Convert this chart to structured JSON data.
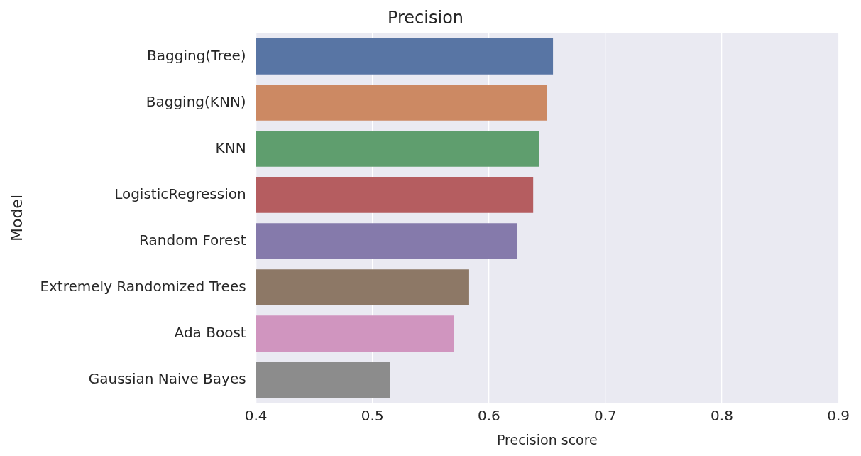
{
  "chart_data": {
    "type": "bar",
    "orientation": "horizontal",
    "title": "Precision",
    "xlabel": "Precision score",
    "ylabel": "Model",
    "categories": [
      "Bagging(Tree)",
      "Bagging(KNN)",
      "KNN",
      "LogisticRegression",
      "Random Forest",
      "Extremely Randomized Trees",
      "Ada Boost",
      "Gaussian Naive Bayes"
    ],
    "values": [
      0.655,
      0.65,
      0.643,
      0.638,
      0.624,
      0.583,
      0.57,
      0.515
    ],
    "colors": [
      "#5875a4",
      "#cc8963",
      "#5f9e6e",
      "#b55d60",
      "#857aab",
      "#8d7866",
      "#d095bf",
      "#8c8c8c"
    ],
    "xlim": [
      0.4,
      0.9
    ],
    "xticks": [
      0.4,
      0.5,
      0.6,
      0.7,
      0.8,
      0.9
    ],
    "grid": "x"
  }
}
